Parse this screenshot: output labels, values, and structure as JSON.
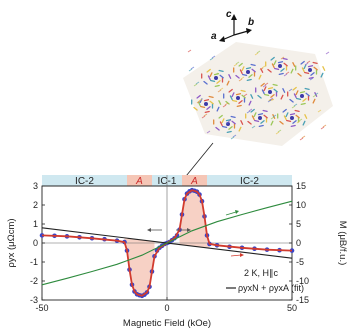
{
  "chart_data": {
    "type": "line",
    "title": "",
    "xlabel": "Magnetic Field (kOe)",
    "ylabel_left": "ρyx (μΩcm)",
    "ylabel_right": "M (μB/f.u.)",
    "xlim": [
      -50,
      50
    ],
    "ylim_left": [
      -3,
      3
    ],
    "ylim_right": [
      -15,
      15
    ],
    "x_ticks": [
      "-50",
      "0",
      "50"
    ],
    "y_ticks_left": [
      "3",
      "2",
      "1",
      "0",
      "-1",
      "-2",
      "-3"
    ],
    "y_ticks_right": [
      "15",
      "10",
      "5",
      "0",
      "-5",
      "-10",
      "-15"
    ],
    "grid": false,
    "phase_bands": [
      {
        "label": "IC-2",
        "from": -50,
        "to": -16,
        "color": "#cfe8f0"
      },
      {
        "label": "A",
        "from": -16,
        "to": -6,
        "color": "#f5c6b6"
      },
      {
        "label": "IC-1",
        "from": -6,
        "to": 6,
        "color": "#cfe8f0"
      },
      {
        "label": "A",
        "from": 6,
        "to": 16,
        "color": "#f5c6b6"
      },
      {
        "label": "IC-2",
        "from": 16,
        "to": 50,
        "color": "#cfe8f0"
      }
    ],
    "annotation": "2 K, H∥c",
    "legend_text": "ρyxN + ρyxA (fit)",
    "series": [
      {
        "axis": "left",
        "style": "markers",
        "color": "#3a44c8",
        "x": [
          -50,
          -45,
          -40,
          -35,
          -30,
          -25,
          -20,
          -17,
          -16,
          -15,
          -14,
          -13,
          -12,
          -11,
          -10,
          -9,
          -8,
          -7,
          -6,
          -5,
          -4,
          -3,
          -2,
          -1,
          0,
          1,
          2,
          3,
          4,
          5,
          6,
          7,
          8,
          9,
          10,
          11,
          12,
          13,
          14,
          15,
          16,
          17,
          20,
          25,
          30,
          35,
          40,
          45,
          50
        ],
        "values": [
          0.4,
          0.38,
          0.35,
          0.3,
          0.25,
          0.2,
          0.12,
          0.05,
          -0.4,
          -1.4,
          -2.2,
          -2.55,
          -2.7,
          -2.75,
          -2.78,
          -2.72,
          -2.6,
          -2.3,
          -1.5,
          -0.7,
          -0.4,
          -0.25,
          -0.15,
          -0.05,
          0,
          0.05,
          0.15,
          0.25,
          0.4,
          0.7,
          1.5,
          2.3,
          2.6,
          2.72,
          2.78,
          2.75,
          2.7,
          2.55,
          2.2,
          1.4,
          0.4,
          -0.05,
          -0.12,
          -0.2,
          -0.25,
          -0.3,
          -0.35,
          -0.38,
          -0.4
        ]
      },
      {
        "axis": "left",
        "style": "line",
        "color": "#d23b2e",
        "x": [
          -50,
          -40,
          -30,
          -20,
          -17,
          -16,
          -15,
          -14,
          -13,
          -12,
          -10,
          -8,
          -7,
          -6,
          -5,
          -3,
          0,
          3,
          5,
          6,
          7,
          8,
          10,
          12,
          13,
          14,
          15,
          16,
          17,
          20,
          30,
          40,
          50
        ],
        "values": [
          0.4,
          0.35,
          0.25,
          0.12,
          0.05,
          -0.4,
          -1.4,
          -2.2,
          -2.55,
          -2.7,
          -2.78,
          -2.6,
          -2.3,
          -1.5,
          -0.7,
          -0.25,
          0,
          0.25,
          0.7,
          1.5,
          2.3,
          2.6,
          2.78,
          2.7,
          2.55,
          2.2,
          1.4,
          0.4,
          -0.05,
          -0.12,
          -0.25,
          -0.35,
          -0.4
        ]
      },
      {
        "axis": "left",
        "style": "line",
        "color": "#222222",
        "x": [
          -50,
          50
        ],
        "values": [
          0.8,
          -0.8
        ]
      },
      {
        "axis": "right",
        "style": "line",
        "color": "#2e8b3e",
        "x": [
          -50,
          -40,
          -30,
          -20,
          -10,
          0,
          10,
          20,
          30,
          40,
          50
        ],
        "values": [
          -11,
          -9.3,
          -7.5,
          -5.6,
          -3.2,
          0,
          3.2,
          5.6,
          7.5,
          9.3,
          11
        ]
      }
    ]
  },
  "crystal_axes": {
    "a": "a",
    "b": "b",
    "c": "c"
  }
}
